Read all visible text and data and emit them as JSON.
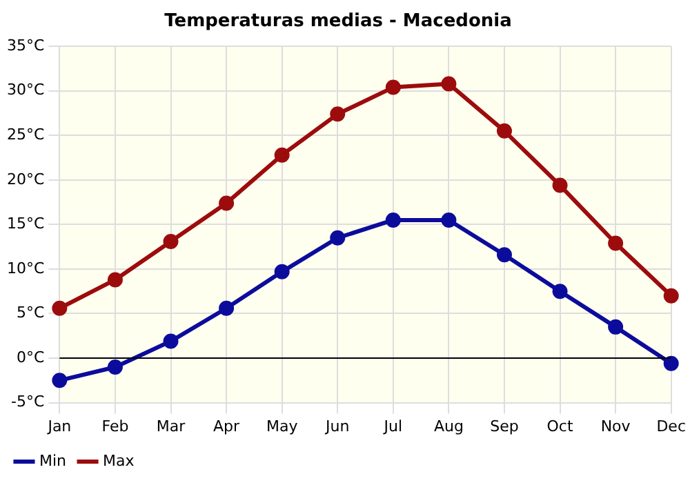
{
  "chart_data": {
    "type": "line",
    "title": "Temperaturas medias - Macedonia",
    "categories": [
      "Jan",
      "Feb",
      "Mar",
      "Apr",
      "May",
      "Jun",
      "Jul",
      "Aug",
      "Sep",
      "Oct",
      "Nov",
      "Dec"
    ],
    "series": [
      {
        "name": "Min",
        "color": "#0c0c9c",
        "values": [
          -2.5,
          -1.0,
          1.9,
          5.6,
          9.7,
          13.5,
          15.5,
          15.5,
          11.6,
          7.5,
          3.5,
          -0.6
        ]
      },
      {
        "name": "Max",
        "color": "#9c0c0c",
        "values": [
          5.6,
          8.8,
          13.1,
          17.4,
          22.8,
          27.4,
          30.4,
          30.8,
          25.5,
          19.4,
          12.9,
          7.0
        ]
      }
    ],
    "ylim": [
      -5,
      35
    ],
    "yticks": [
      {
        "value": -5,
        "label": "-5°C"
      },
      {
        "value": 0,
        "label": "0°C"
      },
      {
        "value": 5,
        "label": "5°C"
      },
      {
        "value": 10,
        "label": "10°C"
      },
      {
        "value": 15,
        "label": "15°C"
      },
      {
        "value": 20,
        "label": "20°C"
      },
      {
        "value": 25,
        "label": "25°C"
      },
      {
        "value": 30,
        "label": "30°C"
      },
      {
        "value": 35,
        "label": "35°C"
      }
    ],
    "ref_lines": [
      {
        "axis": "y",
        "value": 0,
        "color": "#000000"
      }
    ],
    "grid": true,
    "legend": "bottom left",
    "marker": "circle",
    "line_style": "solid"
  }
}
